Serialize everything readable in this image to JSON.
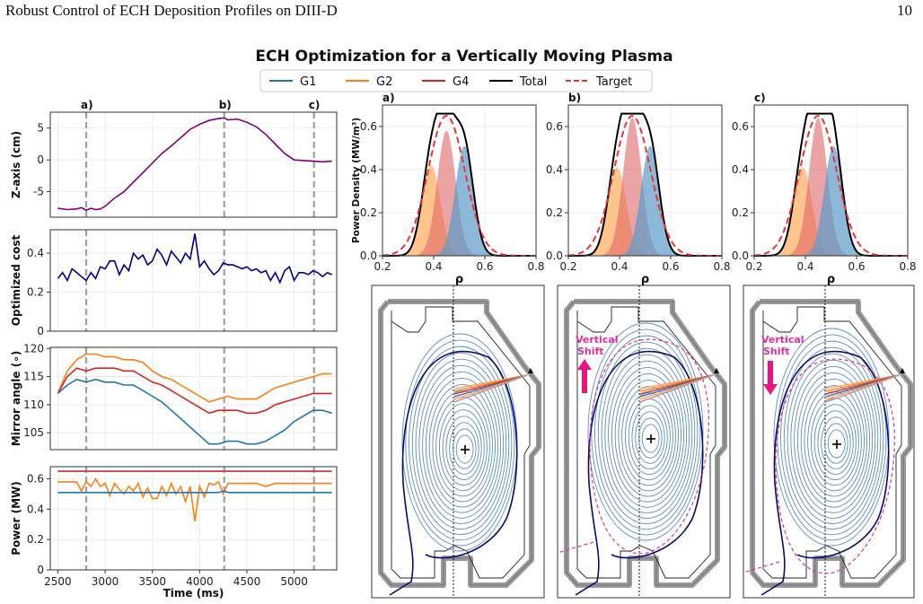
{
  "header": {
    "running_title": "Robust Control of ECH Deposition Profiles on DIII-D",
    "page_number": "10"
  },
  "figure": {
    "title": "ECH Optimization for a Vertically Moving Plasma",
    "legend": [
      {
        "label": "G1",
        "color": "#1f77b4",
        "dash": false
      },
      {
        "label": "G2",
        "color": "#ff7f0e",
        "dash": false
      },
      {
        "label": "G4",
        "color": "#d62728",
        "dash": false
      },
      {
        "label": "Total",
        "color": "#000000",
        "dash": false
      },
      {
        "label": "Target",
        "color": "#ee3333",
        "dash": true
      }
    ],
    "markers": [
      "a)",
      "b)",
      "c)"
    ],
    "shift_label_1": "Vertical",
    "shift_label_2": "Shift"
  },
  "chart_data": [
    {
      "type": "line",
      "id": "zaxis",
      "ylabel": "Z-axis (cm)",
      "xlim": [
        2420,
        5450
      ],
      "ylim": [
        -9,
        7.5
      ],
      "yticks": [
        -5,
        0,
        5
      ],
      "markers_x": [
        2800,
        4260,
        5210
      ],
      "series": [
        {
          "color": "#800080",
          "x": [
            2500,
            2600,
            2700,
            2750,
            2800,
            2850,
            2900,
            2950,
            3000,
            3100,
            3200,
            3300,
            3400,
            3500,
            3600,
            3700,
            3800,
            3900,
            4000,
            4100,
            4200,
            4260,
            4300,
            4400,
            4500,
            4600,
            4700,
            4800,
            4900,
            5000,
            5100,
            5200,
            5300,
            5400
          ],
          "y": [
            -7.6,
            -7.8,
            -7.7,
            -7.5,
            -7.9,
            -7.6,
            -7.8,
            -7.7,
            -7.3,
            -6.0,
            -5.0,
            -3.5,
            -2.0,
            -0.5,
            1.0,
            2.2,
            3.5,
            4.8,
            5.6,
            6.2,
            6.5,
            6.6,
            6.3,
            6.4,
            5.9,
            5.2,
            4.0,
            2.5,
            1.0,
            0.0,
            -0.1,
            -0.2,
            -0.3,
            -0.2
          ]
        }
      ]
    },
    {
      "type": "line",
      "id": "cost",
      "ylabel": "Optimized cost",
      "xlim": [
        2420,
        5450
      ],
      "ylim": [
        0,
        0.52
      ],
      "yticks": [
        0.0,
        0.2,
        0.4
      ],
      "series": [
        {
          "color": "#00008b",
          "x": [
            2500,
            2550,
            2600,
            2650,
            2700,
            2750,
            2800,
            2850,
            2900,
            2950,
            3000,
            3050,
            3100,
            3150,
            3200,
            3250,
            3300,
            3350,
            3400,
            3450,
            3500,
            3550,
            3600,
            3650,
            3700,
            3750,
            3800,
            3850,
            3900,
            3950,
            4000,
            4050,
            4100,
            4150,
            4200,
            4250,
            4300,
            4350,
            4400,
            4450,
            4500,
            4550,
            4600,
            4650,
            4700,
            4750,
            4800,
            4850,
            4900,
            4950,
            5000,
            5050,
            5100,
            5150,
            5200,
            5250,
            5300,
            5350,
            5400
          ],
          "y": [
            0.27,
            0.3,
            0.26,
            0.32,
            0.3,
            0.28,
            0.26,
            0.3,
            0.27,
            0.33,
            0.32,
            0.36,
            0.36,
            0.29,
            0.34,
            0.31,
            0.4,
            0.37,
            0.39,
            0.34,
            0.36,
            0.42,
            0.39,
            0.34,
            0.41,
            0.38,
            0.35,
            0.4,
            0.37,
            0.5,
            0.33,
            0.36,
            0.32,
            0.29,
            0.31,
            0.35,
            0.34,
            0.34,
            0.33,
            0.32,
            0.33,
            0.31,
            0.32,
            0.3,
            0.31,
            0.26,
            0.3,
            0.25,
            0.31,
            0.33,
            0.26,
            0.3,
            0.3,
            0.29,
            0.31,
            0.3,
            0.28,
            0.3,
            0.29
          ]
        }
      ]
    },
    {
      "type": "line",
      "id": "mirror",
      "ylabel": "Mirror angle (∘)",
      "xlim": [
        2420,
        5450
      ],
      "ylim": [
        102,
        120.2
      ],
      "yticks": [
        105,
        110,
        115,
        120
      ],
      "series": [
        {
          "name": "G2",
          "color": "#ff7f0e",
          "x": [
            2500,
            2600,
            2700,
            2800,
            2900,
            3000,
            3100,
            3200,
            3300,
            3400,
            3500,
            3600,
            3700,
            3800,
            3900,
            4000,
            4100,
            4200,
            4300,
            4400,
            4500,
            4600,
            4700,
            4800,
            4900,
            5000,
            5100,
            5200,
            5300,
            5400
          ],
          "y": [
            112,
            116,
            118,
            119,
            119,
            118.5,
            118.5,
            118,
            118,
            117.5,
            116,
            115,
            114.5,
            113.5,
            112.5,
            111.5,
            110.5,
            111,
            111.5,
            111,
            111,
            111,
            112,
            113,
            113.5,
            114,
            114.5,
            115,
            115.5,
            115.5
          ]
        },
        {
          "name": "G4",
          "color": "#d62728",
          "x": [
            2500,
            2600,
            2700,
            2800,
            2900,
            3000,
            3100,
            3200,
            3300,
            3400,
            3500,
            3600,
            3700,
            3800,
            3900,
            4000,
            4100,
            4200,
            4300,
            4400,
            4500,
            4600,
            4700,
            4800,
            4900,
            5000,
            5100,
            5200,
            5300,
            5400
          ],
          "y": [
            112,
            115,
            116.5,
            116,
            116.5,
            116.5,
            116.5,
            116,
            116,
            115,
            114,
            113.5,
            112.5,
            111.5,
            110.5,
            109.5,
            108.5,
            109,
            109,
            109,
            108.5,
            108.5,
            109,
            110,
            110.5,
            111,
            111.5,
            112,
            112,
            112
          ]
        },
        {
          "name": "G1",
          "color": "#1f77b4",
          "x": [
            2500,
            2600,
            2700,
            2800,
            2900,
            3000,
            3100,
            3200,
            3300,
            3400,
            3500,
            3600,
            3700,
            3800,
            3900,
            4000,
            4100,
            4200,
            4300,
            4400,
            4500,
            4600,
            4700,
            4800,
            4900,
            5000,
            5100,
            5200,
            5300,
            5400
          ],
          "y": [
            112,
            113.5,
            114.5,
            114,
            114.5,
            114,
            114,
            113.5,
            113.5,
            112.5,
            111.5,
            110.5,
            109,
            107.5,
            106,
            104.5,
            103,
            103,
            103.5,
            103.5,
            103,
            103,
            103.5,
            104.5,
            105.5,
            107,
            108,
            109,
            109,
            108.5
          ]
        }
      ]
    },
    {
      "type": "line",
      "id": "power",
      "ylabel": "Power (MW)",
      "xlim": [
        2420,
        5450
      ],
      "ylim": [
        0,
        0.68
      ],
      "yticks": [
        0.0,
        0.2,
        0.4,
        0.6
      ],
      "xticks": [
        2500,
        3000,
        3500,
        4000,
        4500,
        5000
      ],
      "xlabel": "Time (ms)",
      "series": [
        {
          "name": "G4",
          "color": "#d62728",
          "x": [
            2500,
            5400
          ],
          "y": [
            0.65,
            0.65
          ]
        },
        {
          "name": "G2",
          "color": "#ff7f0e",
          "x": [
            2500,
            2600,
            2700,
            2750,
            2800,
            2850,
            2900,
            2950,
            3000,
            3050,
            3100,
            3150,
            3200,
            3250,
            3300,
            3350,
            3400,
            3450,
            3500,
            3550,
            3600,
            3650,
            3700,
            3750,
            3800,
            3850,
            3900,
            3950,
            4000,
            4050,
            4100,
            4150,
            4200,
            4250,
            4300,
            4350,
            4400,
            4500,
            4600,
            4700,
            4800,
            4900,
            5000,
            5100,
            5200,
            5300,
            5400
          ],
          "y": [
            0.58,
            0.58,
            0.58,
            0.52,
            0.58,
            0.55,
            0.6,
            0.55,
            0.57,
            0.49,
            0.57,
            0.53,
            0.5,
            0.55,
            0.52,
            0.57,
            0.48,
            0.54,
            0.47,
            0.47,
            0.55,
            0.49,
            0.57,
            0.5,
            0.55,
            0.45,
            0.55,
            0.32,
            0.55,
            0.48,
            0.57,
            0.56,
            0.58,
            0.5,
            0.57,
            0.57,
            0.57,
            0.57,
            0.57,
            0.55,
            0.57,
            0.57,
            0.57,
            0.57,
            0.57,
            0.57,
            0.57
          ]
        },
        {
          "name": "G1",
          "color": "#1f77b4",
          "x": [
            2500,
            2800,
            3000,
            3500,
            4000,
            4200,
            4260,
            4300,
            4500,
            5000,
            5400
          ],
          "y": [
            0.51,
            0.51,
            0.51,
            0.51,
            0.51,
            0.51,
            0.52,
            0.51,
            0.51,
            0.51,
            0.51
          ]
        }
      ]
    },
    {
      "type": "area",
      "id": "profiles",
      "xlim": [
        0.2,
        0.8
      ],
      "ylim": [
        0,
        0.7
      ],
      "xticks": [
        0.2,
        0.4,
        0.6,
        0.8
      ],
      "yticks": [
        0.0,
        0.2,
        0.4,
        0.6
      ],
      "xlabel": "ρ",
      "ylabel": "Power Density (MW/m³)",
      "panels": [
        {
          "label": "a)",
          "g2": {
            "c": 0.39,
            "a": 0.42
          },
          "g4": {
            "c": 0.45,
            "a": 0.58
          },
          "g1": {
            "c": 0.52,
            "a": 0.51
          }
        },
        {
          "label": "b)",
          "g2": {
            "c": 0.39,
            "a": 0.41
          },
          "g4": {
            "c": 0.45,
            "a": 0.64
          },
          "g1": {
            "c": 0.52,
            "a": 0.51
          }
        },
        {
          "label": "c)",
          "g2": {
            "c": 0.39,
            "a": 0.41
          },
          "g4": {
            "c": 0.45,
            "a": 0.64
          },
          "g1": {
            "c": 0.51,
            "a": 0.51
          }
        }
      ],
      "target": {
        "c": 0.45,
        "a": 0.65
      }
    }
  ]
}
